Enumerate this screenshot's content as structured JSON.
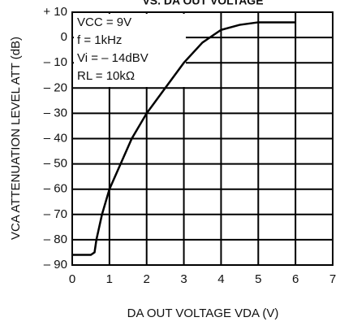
{
  "chart_data": {
    "type": "line",
    "title": "VS. DA OUT VOLTAGE",
    "xlabel": "DA OUT VOLTAGE VDA (V)",
    "ylabel": "VCA ATTENUATION LEVEL ATT (dB)",
    "annotations": [
      "VCC = 9V",
      "f = 1kHz",
      "Vi = – 14dBV",
      "RL = 10kΩ"
    ],
    "x": [
      0,
      0.5,
      0.6,
      0.65,
      0.8,
      1.0,
      1.3,
      1.6,
      2.0,
      2.5,
      3.0,
      3.5,
      4.0,
      4.5,
      5.0,
      5.5,
      6.0
    ],
    "values": [
      -86,
      -86,
      -85,
      -80,
      -70,
      -60,
      -50,
      -40,
      -30,
      -20,
      -10,
      -2,
      3,
      5,
      6,
      6,
      6
    ],
    "color": "#000000",
    "xlim": [
      0,
      7
    ],
    "xticks": [
      0,
      1,
      2,
      3,
      4,
      5,
      6,
      7
    ],
    "ylim": [
      -90,
      10
    ],
    "yticks": [
      {
        "value": 10,
        "label": "+ 10"
      },
      0,
      {
        "value": -10,
        "label": "– 10"
      },
      {
        "value": -20,
        "label": "– 20"
      },
      {
        "value": -30,
        "label": "– 30"
      },
      {
        "value": -40,
        "label": "– 40"
      },
      {
        "value": -50,
        "label": "– 50"
      },
      {
        "value": -60,
        "label": "– 60"
      },
      {
        "value": -70,
        "label": "– 70"
      },
      {
        "value": -80,
        "label": "– 80"
      },
      {
        "value": -90,
        "label": "– 90"
      }
    ],
    "grid": true
  }
}
